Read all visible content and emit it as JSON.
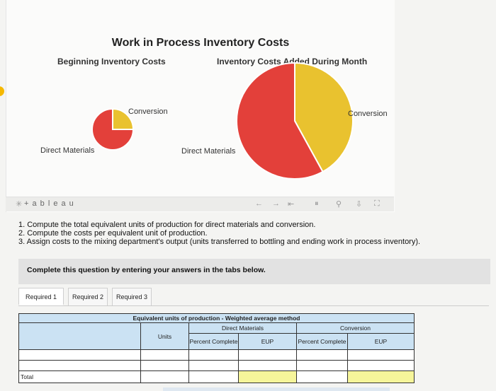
{
  "viz": {
    "title": "Work in Process Inventory Costs",
    "left_subtitle": "Beginning Inventory Costs",
    "right_subtitle": "Inventory Costs Added During Month",
    "left_pie_labels": {
      "conversion": "Conversion",
      "direct_materials": "Direct Materials"
    },
    "right_pie_labels": {
      "conversion": "Conversion",
      "direct_materials": "Direct Materials"
    },
    "colors": {
      "direct_materials": "#e3403a",
      "conversion": "#e9c22f"
    }
  },
  "chart_data": [
    {
      "type": "pie",
      "title": "Beginning Inventory Costs",
      "labels": [
        "Conversion",
        "Direct Materials"
      ],
      "values": [
        25,
        75
      ]
    },
    {
      "type": "pie",
      "title": "Inventory Costs Added During Month",
      "labels": [
        "Conversion",
        "Direct Materials"
      ],
      "values": [
        42,
        58
      ]
    }
  ],
  "toolbar": {
    "brand": "+ a b l e a u",
    "icons": [
      "undo-icon",
      "redo-icon",
      "revert-icon",
      "pause-icon",
      "share-icon",
      "download-icon",
      "fullscreen-icon"
    ]
  },
  "instructions": [
    "1. Compute the total equivalent units of production for direct materials and conversion.",
    "2. Compute the costs per equivalent unit of production.",
    "3. Assign costs to the mixing department's output (units transferred to bottling and ending work in process inventory)."
  ],
  "banner": "Complete this question by entering your answers in the tabs below.",
  "tabs": [
    "Required 1",
    "Required 2",
    "Required 3"
  ],
  "table": {
    "caption": "Equivalent units of production - Weighted average method",
    "direct_materials": "Direct Materials",
    "conversion": "Conversion",
    "units": "Units",
    "percent_complete": "Percent Complete",
    "eup": "EUP",
    "total_label": "Total"
  }
}
